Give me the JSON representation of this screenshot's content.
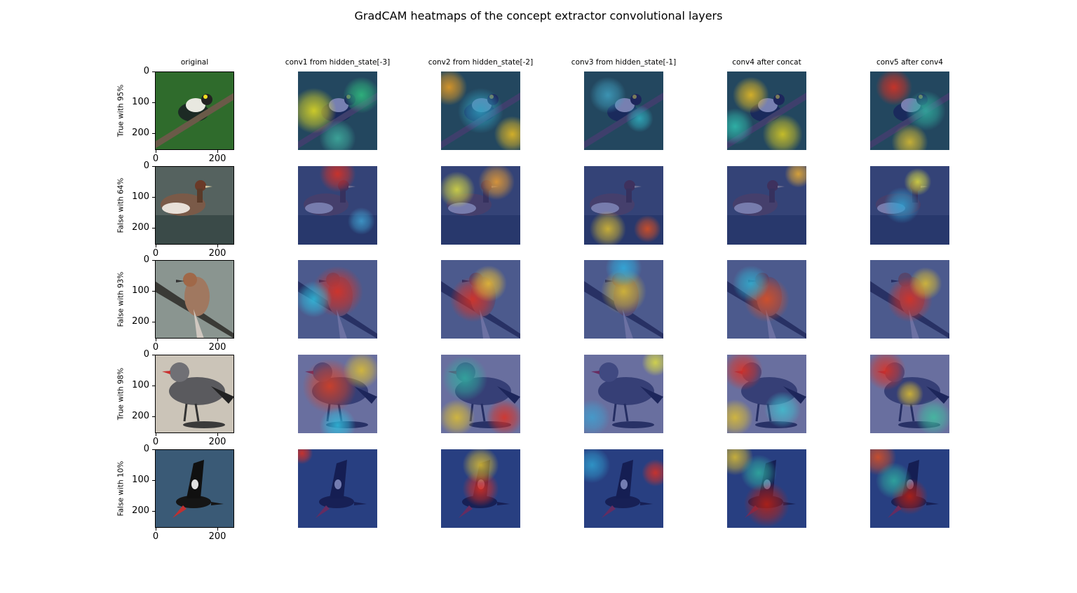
{
  "figure": {
    "title": "GradCAM heatmaps of the concept extractor convolutional layers",
    "columns": [
      "original",
      "conv1 from hidden_state[-3]",
      "conv2 from hidden_state[-2]",
      "conv3 from hidden_state[-1]",
      "conv4 after concat",
      "conv5 after conv4"
    ],
    "rows": [
      {
        "label": "True with 95%",
        "subject": "yellow-throated warbler on branch",
        "bg": "#2f6b2c"
      },
      {
        "label": "False with 64%",
        "subject": "grebe on water",
        "bg": "#55625f"
      },
      {
        "label": "False with 93%",
        "subject": "wren on branch",
        "bg": "#8a9590"
      },
      {
        "label": "True with 98%",
        "subject": "gull on sand",
        "bg": "#cbc4b8"
      },
      {
        "label": "False with 10%",
        "subject": "guillemot flying over water",
        "bg": "#3a5a76"
      }
    ],
    "y_ticks": [
      "0",
      "100",
      "200"
    ],
    "x_ticks": [
      "0",
      "200"
    ]
  }
}
